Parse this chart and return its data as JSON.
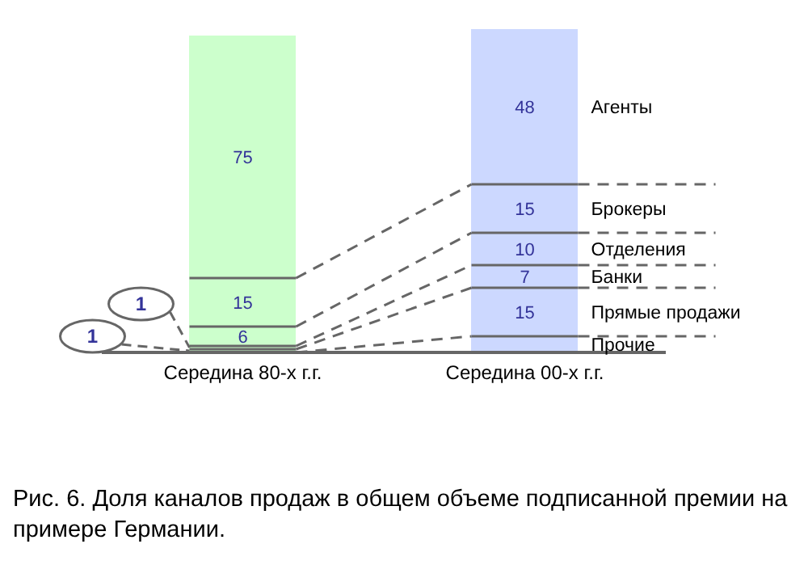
{
  "chart_data": {
    "type": "bar",
    "stacked": true,
    "categories": [
      "Середина 80-х г.г.",
      "Середина 00-х г.г."
    ],
    "series": [
      {
        "name": "Прочие",
        "colors": [
          "#ccffcc",
          "#ccd8ff"
        ],
        "values": [
          null,
          5
        ],
        "value_labels": [
          null,
          null
        ]
      },
      {
        "name": "Прямые продажи",
        "colors": [
          "#ccffcc",
          "#ccd8ff"
        ],
        "values": [
          1,
          15
        ],
        "value_labels": [
          "1",
          "15"
        ]
      },
      {
        "name": "Банки",
        "colors": [
          "#ccffcc",
          "#ccd8ff"
        ],
        "values": [
          1,
          7
        ],
        "value_labels": [
          "1",
          "7"
        ]
      },
      {
        "name": "Отделения",
        "colors": [
          "#ccffcc",
          "#ccd8ff"
        ],
        "values": [
          6,
          10
        ],
        "value_labels": [
          "6",
          "10"
        ]
      },
      {
        "name": "Брокеры",
        "colors": [
          "#ccffcc",
          "#ccd8ff"
        ],
        "values": [
          15,
          15
        ],
        "value_labels": [
          "15",
          "15"
        ]
      },
      {
        "name": "Агенты",
        "colors": [
          "#ccffcc",
          "#ccd8ff"
        ],
        "values": [
          75,
          48
        ],
        "value_labels": [
          "75",
          "48"
        ]
      }
    ],
    "annotations": [
      "Рис. 6. Доля каналов продаж в общем объеме подписанной премии на примере Германии."
    ]
  }
}
